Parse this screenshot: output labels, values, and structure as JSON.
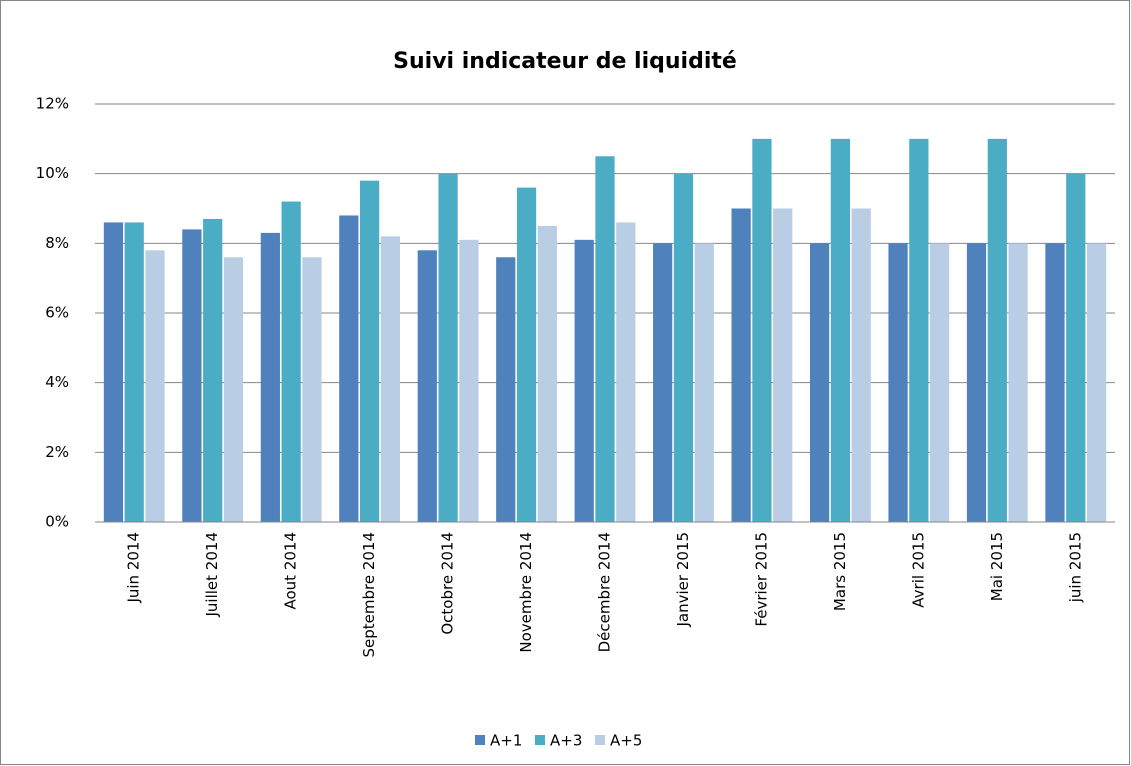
{
  "chart_data": {
    "type": "bar",
    "title": "Suivi indicateur de liquidité",
    "categories": [
      "Juin 2014",
      "Juillet 2014",
      "Aout 2014",
      "Septembre 2014",
      "Octobre 2014",
      "Novembre 2014",
      "Décembre 2014",
      "Janvier 2015",
      "Février 2015",
      "Mars 2015",
      "Avril 2015",
      "Mai 2015",
      "juin 2015"
    ],
    "series": [
      {
        "name": "A+1",
        "color": "#4f81bd",
        "values": [
          8.6,
          8.4,
          8.3,
          8.8,
          7.8,
          7.6,
          8.1,
          8,
          9,
          8,
          8,
          8,
          8
        ]
      },
      {
        "name": "A+3",
        "color": "#4bacc6",
        "values": [
          8.6,
          8.7,
          9.2,
          9.8,
          10,
          9.6,
          10.5,
          10,
          11,
          11,
          11,
          11,
          10
        ]
      },
      {
        "name": "A+5",
        "color": "#b9cde5",
        "values": [
          7.8,
          7.6,
          7.6,
          8.2,
          8.1,
          8.5,
          8.6,
          8,
          9,
          9,
          8,
          8,
          8
        ]
      }
    ],
    "ylim": [
      0,
      12
    ],
    "yticks": [
      {
        "value": 0,
        "label": "0%"
      },
      {
        "value": 2,
        "label": "2%"
      },
      {
        "value": 4,
        "label": "4%"
      },
      {
        "value": 6,
        "label": "6%"
      },
      {
        "value": 8,
        "label": "8%"
      },
      {
        "value": 10,
        "label": "10%"
      },
      {
        "value": 12,
        "label": "12%"
      }
    ],
    "grid": true,
    "legend": "bottom"
  }
}
